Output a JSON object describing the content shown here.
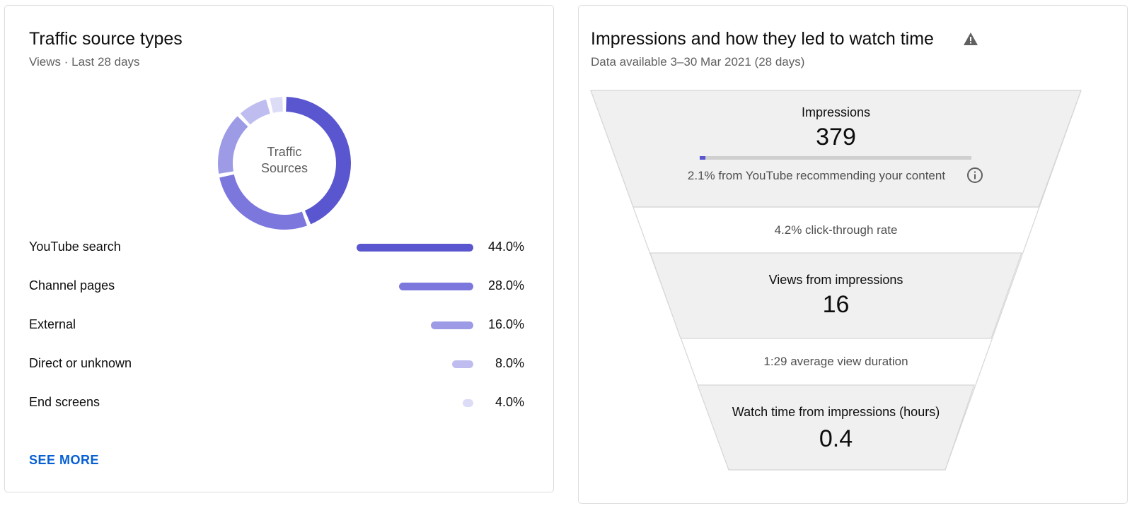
{
  "traffic": {
    "title": "Traffic source types",
    "subtitle": "Views · Last 28 days",
    "donut_label_line1": "Traffic",
    "donut_label_line2": "Sources",
    "see_more": "SEE MORE",
    "sources": [
      {
        "name": "YouTube search",
        "percent_text": "44.0%",
        "value": 44.0,
        "color": "#5a56cf"
      },
      {
        "name": "Channel pages",
        "percent_text": "28.0%",
        "value": 28.0,
        "color": "#7b77dd"
      },
      {
        "name": "External",
        "percent_text": "16.0%",
        "value": 16.0,
        "color": "#9d9ae6"
      },
      {
        "name": "Direct or unknown",
        "percent_text": "8.0%",
        "value": 8.0,
        "color": "#bfbdef"
      },
      {
        "name": "End screens",
        "percent_text": "4.0%",
        "value": 4.0,
        "color": "#dddcf7"
      }
    ]
  },
  "impressions": {
    "title": "Impressions and how they led to watch time",
    "subtitle": "Data available 3–30 Mar 2021 (28 days)",
    "warning_icon": "warning-icon",
    "impressions_label": "Impressions",
    "impressions_value": "379",
    "recommend_fraction": 0.021,
    "recommend_text": "2.1% from YouTube recommending your content",
    "info_icon": "info-icon",
    "ctr_text": "4.2% click-through rate",
    "views_label": "Views from impressions",
    "views_value": "16",
    "avg_duration_text": "1:29 average view duration",
    "watch_label": "Watch time from impressions (hours)",
    "watch_value": "0.4",
    "colors": {
      "accent": "#5a56cf",
      "funnel_fill": "#f0f0f0",
      "funnel_line": "#d6d6d6"
    }
  }
}
